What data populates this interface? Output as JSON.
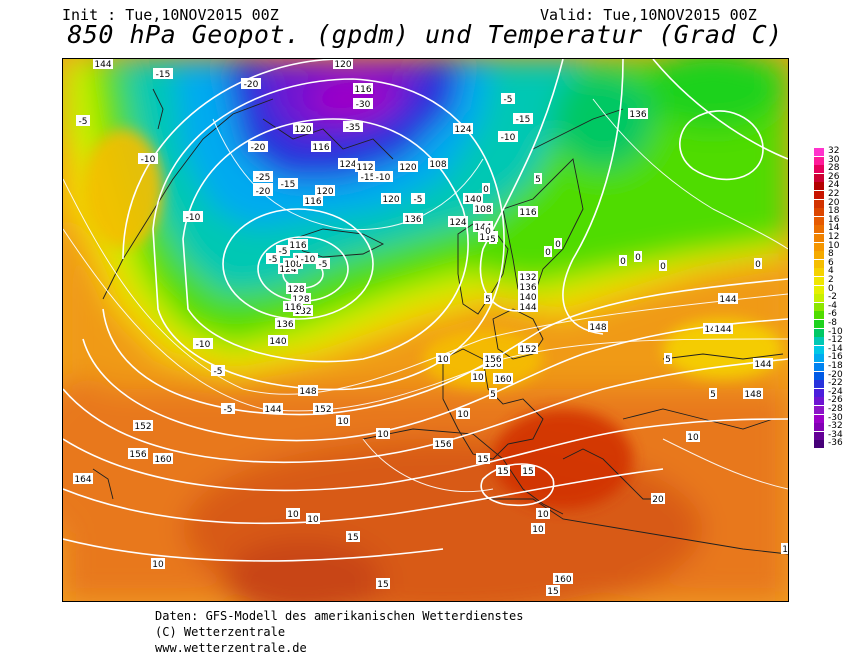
{
  "header": {
    "init": "Init : Tue,10NOV2015 00Z",
    "valid": "Valid: Tue,10NOV2015 00Z",
    "title": "850 hPa Geopot. (gpdm) und Temperatur (Grad C)"
  },
  "legend": {
    "values": [
      "32",
      "30",
      "28",
      "26",
      "24",
      "22",
      "20",
      "18",
      "16",
      "14",
      "12",
      "10",
      "8",
      "6",
      "4",
      "2",
      "0",
      "-2",
      "-4",
      "-6",
      "-8",
      "-10",
      "-12",
      "-14",
      "-16",
      "-18",
      "-20",
      "-22",
      "-24",
      "-26",
      "-28",
      "-30",
      "-32",
      "-34",
      "-36"
    ],
    "colors": [
      "#ff33cc",
      "#ff1a99",
      "#e6005c",
      "#cc0033",
      "#b30000",
      "#c81400",
      "#d23200",
      "#dc4600",
      "#e65a00",
      "#eb6e00",
      "#f08200",
      "#f59600",
      "#f5aa00",
      "#f5be00",
      "#f5d200",
      "#f0e600",
      "#e6f000",
      "#c8f000",
      "#8ce600",
      "#50dc00",
      "#1ed21e",
      "#00c864",
      "#00c8b4",
      "#00c8e6",
      "#00aaf0",
      "#0082f0",
      "#005ae6",
      "#2832dc",
      "#4b1edc",
      "#6e14d2",
      "#8c14c8",
      "#9b00c8",
      "#8200b4",
      "#640096",
      "#460078"
    ]
  },
  "map": {
    "geopotential_labels": [
      "144",
      "120",
      "116",
      "120",
      "124",
      "116",
      "124",
      "120",
      "116",
      "112",
      "120",
      "120",
      "136",
      "140",
      "144",
      "108",
      "116",
      "112",
      "108",
      "116",
      "120",
      "124",
      "128",
      "128",
      "132",
      "136",
      "140",
      "124",
      "132",
      "136",
      "140",
      "144",
      "148",
      "152",
      "156",
      "160",
      "144",
      "148",
      "144",
      "144",
      "148",
      "152",
      "156",
      "160",
      "164",
      "156",
      "160",
      "144",
      "148",
      "152",
      "156",
      "136",
      "108",
      "116"
    ],
    "temperature_labels": [
      "-15",
      "-10",
      "-5",
      "-20",
      "-20",
      "-25",
      "-25",
      "-30",
      "-35",
      "-20",
      "-15",
      "-10",
      "-5",
      "-10",
      "-5",
      "-15",
      "-10",
      "-5",
      "0",
      "0",
      "5",
      "5",
      "0",
      "-5",
      "-10",
      "-5",
      "-5",
      "0",
      "0",
      "0",
      "5",
      "10",
      "10",
      "15",
      "15",
      "15",
      "10",
      "10",
      "10",
      "5",
      "10",
      "5",
      "0",
      "-15",
      "-10",
      "-5",
      "0",
      "5",
      "10",
      "10",
      "15",
      "20",
      "10",
      "15",
      "10",
      "15",
      "10",
      "10"
    ]
  },
  "footer": {
    "line1": "Daten: GFS-Modell des amerikanischen Wetterdienstes",
    "line2": "(C) Wetterzentrale",
    "line3": "www.wetterzentrale.de"
  }
}
